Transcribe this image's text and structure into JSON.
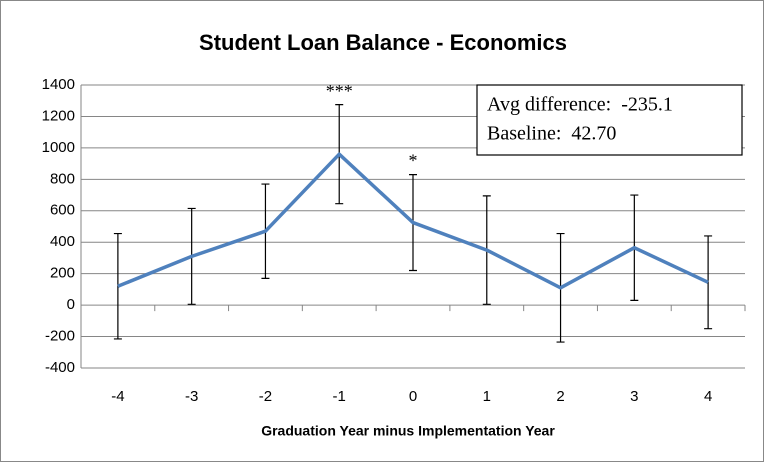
{
  "chart_data": {
    "type": "line",
    "title": "Student Loan Balance - Economics",
    "x_label": "Graduation Year minus Implementation Year",
    "categories": [
      "-4",
      "-3",
      "-2",
      "-1",
      "0",
      "1",
      "2",
      "3",
      "4"
    ],
    "series": [
      {
        "color": "#4f81bd",
        "values": [
          120,
          310,
          470,
          960,
          525,
          350,
          110,
          365,
          145
        ],
        "errors": [
          335,
          305,
          300,
          315,
          305,
          345,
          345,
          335,
          295
        ]
      }
    ],
    "significance_labels": [
      null,
      null,
      null,
      "***",
      "*",
      null,
      null,
      null,
      null
    ],
    "annotations": [
      "Avg difference:  -235.1",
      "Baseline:  42.70"
    ],
    "ylim": [
      -400,
      1400
    ],
    "yticks": [
      -400,
      -200,
      0,
      200,
      400,
      600,
      800,
      1000,
      1200,
      1400
    ],
    "grid": true
  }
}
